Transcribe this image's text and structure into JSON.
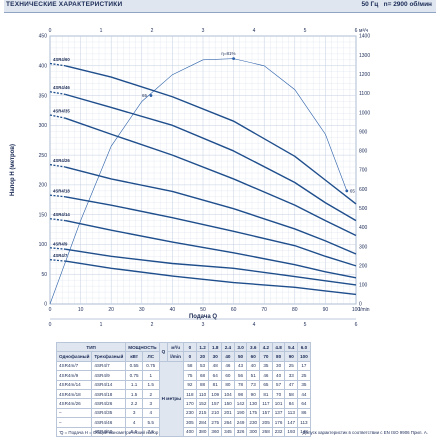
{
  "header": {
    "title": "ТЕХНИЧЕСКИЕ ХАРАКТЕРИСТИКИ",
    "frequency": "50 Гц",
    "speed": "n= 2900 об/мин"
  },
  "chart_data": {
    "type": "line",
    "ylabel": "Напор H (метров)",
    "xlabel": "Подача Q",
    "x_unit_lmin": "l/min",
    "x_unit_m3h": "м³/ч",
    "xlim": [
      0,
      100
    ],
    "ylim": [
      0,
      450
    ],
    "xticks": [
      0,
      10,
      20,
      30,
      40,
      50,
      60,
      70,
      80,
      90,
      100
    ],
    "yticks": [
      0,
      50,
      100,
      150,
      200,
      250,
      300,
      350,
      400,
      450
    ],
    "top_ticks": [
      "0",
      "1",
      "2",
      "3",
      "4",
      "5",
      "6"
    ],
    "bottom_ticks": [
      "0",
      "1",
      "2",
      "3",
      "4",
      "5",
      "6"
    ],
    "right_ticks": [
      "0",
      "100",
      "200",
      "300",
      "400",
      "500",
      "600",
      "700",
      "800",
      "900",
      "1000",
      "1100",
      "1200",
      "1300",
      "1400"
    ],
    "right_max": 1400,
    "efficiency_label": "η=81%",
    "eta_left_label": "65",
    "eta_right_label": "65",
    "series": [
      {
        "name": "4SR4m/7",
        "values": [
          [
            5,
            72
          ],
          [
            20,
            60
          ],
          [
            40,
            47
          ],
          [
            60,
            36
          ],
          [
            80,
            28
          ],
          [
            90,
            22
          ],
          [
            100,
            16
          ]
        ]
      },
      {
        "name": "4SR4m/9",
        "values": [
          [
            5,
            92
          ],
          [
            20,
            80
          ],
          [
            40,
            68
          ],
          [
            60,
            60
          ],
          [
            80,
            46
          ],
          [
            90,
            39
          ],
          [
            100,
            32
          ]
        ]
      },
      {
        "name": "4SR4m/14",
        "values": [
          [
            5,
            140
          ],
          [
            20,
            124
          ],
          [
            40,
            104
          ],
          [
            60,
            86
          ],
          [
            80,
            66
          ],
          [
            90,
            54
          ],
          [
            100,
            44
          ]
        ]
      },
      {
        "name": "4SR4m/18",
        "values": [
          [
            5,
            180
          ],
          [
            20,
            166
          ],
          [
            40,
            145
          ],
          [
            60,
            122
          ],
          [
            80,
            98
          ],
          [
            90,
            80
          ],
          [
            100,
            64
          ]
        ]
      },
      {
        "name": "4SR4m/26",
        "values": [
          [
            5,
            230
          ],
          [
            20,
            210
          ],
          [
            40,
            189
          ],
          [
            60,
            160
          ],
          [
            80,
            126
          ],
          [
            90,
            106
          ],
          [
            100,
            84
          ]
        ]
      },
      {
        "name": "4SR4/35",
        "values": [
          [
            5,
            312
          ],
          [
            20,
            285
          ],
          [
            40,
            250
          ],
          [
            60,
            210
          ],
          [
            80,
            166
          ],
          [
            90,
            140
          ],
          [
            100,
            115
          ]
        ]
      },
      {
        "name": "4SR4/46",
        "values": [
          [
            5,
            352
          ],
          [
            20,
            330
          ],
          [
            40,
            300
          ],
          [
            60,
            257
          ],
          [
            80,
            204
          ],
          [
            90,
            170
          ],
          [
            100,
            140
          ]
        ]
      },
      {
        "name": "4SR4/60",
        "values": [
          [
            5,
            400
          ],
          [
            20,
            381
          ],
          [
            40,
            348
          ],
          [
            60,
            307
          ],
          [
            80,
            248
          ],
          [
            90,
            208
          ],
          [
            100,
            168
          ]
        ]
      }
    ],
    "efficiency_curve": [
      [
        0,
        0
      ],
      [
        10,
        140
      ],
      [
        20,
        265
      ],
      [
        30,
        340
      ],
      [
        40,
        385
      ],
      [
        50,
        410
      ],
      [
        60,
        412
      ],
      [
        70,
        400
      ],
      [
        80,
        360
      ],
      [
        90,
        285
      ],
      [
        97,
        190
      ]
    ]
  },
  "table": {
    "type_label": "ТИП",
    "power_label": "МОЩНОСТЬ",
    "single_phase": "Однофазный",
    "three_phase": "Трехфазный",
    "kw": "кВт",
    "hp": "ЛС",
    "q_m3h": "м³/ч",
    "q_lmin": "l/min",
    "q_symbol": "Q",
    "h_label": "H метры",
    "q_m3h_values": [
      "0",
      "1.2",
      "1.8",
      "2.4",
      "3.0",
      "3.6",
      "4.2",
      "4.8",
      "5.4",
      "6.0"
    ],
    "q_lmin_values": [
      "0",
      "20",
      "30",
      "40",
      "50",
      "60",
      "70",
      "80",
      "90",
      "100"
    ],
    "rows": [
      {
        "single": "4SR4m/7",
        "three": "4SR4/7",
        "kw": "0.55",
        "hp": "0.75",
        "h": [
          "58",
          "53",
          "48",
          "46",
          "43",
          "40",
          "35",
          "30",
          "25",
          "17"
        ]
      },
      {
        "single": "4SR4m/9",
        "three": "4SR4/9",
        "kw": "0.75",
        "hp": "1",
        "h": [
          "75",
          "68",
          "64",
          "60",
          "56",
          "51",
          "46",
          "40",
          "33",
          "25"
        ]
      },
      {
        "single": "4SR4m/14",
        "three": "4SR4/14",
        "kw": "1.1",
        "hp": "1.5",
        "h": [
          "92",
          "88",
          "81",
          "80",
          "78",
          "73",
          "65",
          "57",
          "47",
          "35"
        ]
      },
      {
        "single": "4SR4m/18",
        "three": "4SR4/18",
        "kw": "1.5",
        "hp": "2",
        "h": [
          "118",
          "110",
          "109",
          "104",
          "98",
          "90",
          "81",
          "70",
          "58",
          "44"
        ]
      },
      {
        "single": "4SR4m/26",
        "three": "4SR4/26",
        "kw": "2.2",
        "hp": "3",
        "h": [
          "170",
          "152",
          "157",
          "150",
          "142",
          "130",
          "117",
          "101",
          "84",
          "64"
        ]
      },
      {
        "single": "–",
        "three": "4SR4/35",
        "kw": "3",
        "hp": "4",
        "h": [
          "230",
          "215",
          "210",
          "201",
          "190",
          "175",
          "157",
          "137",
          "113",
          "86"
        ]
      },
      {
        "single": "–",
        "three": "4SR4/46",
        "kw": "4",
        "hp": "5.5",
        "h": [
          "305",
          "284",
          "275",
          "264",
          "249",
          "230",
          "205",
          "176",
          "147",
          "113"
        ]
      },
      {
        "single": "–",
        "three": "4SR4/60",
        "kw": "5.5",
        "hp": "7.5",
        "h": [
          "400",
          "380",
          "360",
          "345",
          "326",
          "300",
          "268",
          "232",
          "193",
          "148"
        ]
      }
    ]
  },
  "footer": {
    "left": "Q = Подача   H = Общий манометрический напор",
    "right": "Допуск характеристик в соответствии с EN ISO 9906 Прил. A."
  },
  "colors": {
    "curve": "#1f4e8c",
    "accent": "#2a5fa8",
    "grid": "#c4cfe0",
    "header_bg": "#dfe6f0"
  }
}
